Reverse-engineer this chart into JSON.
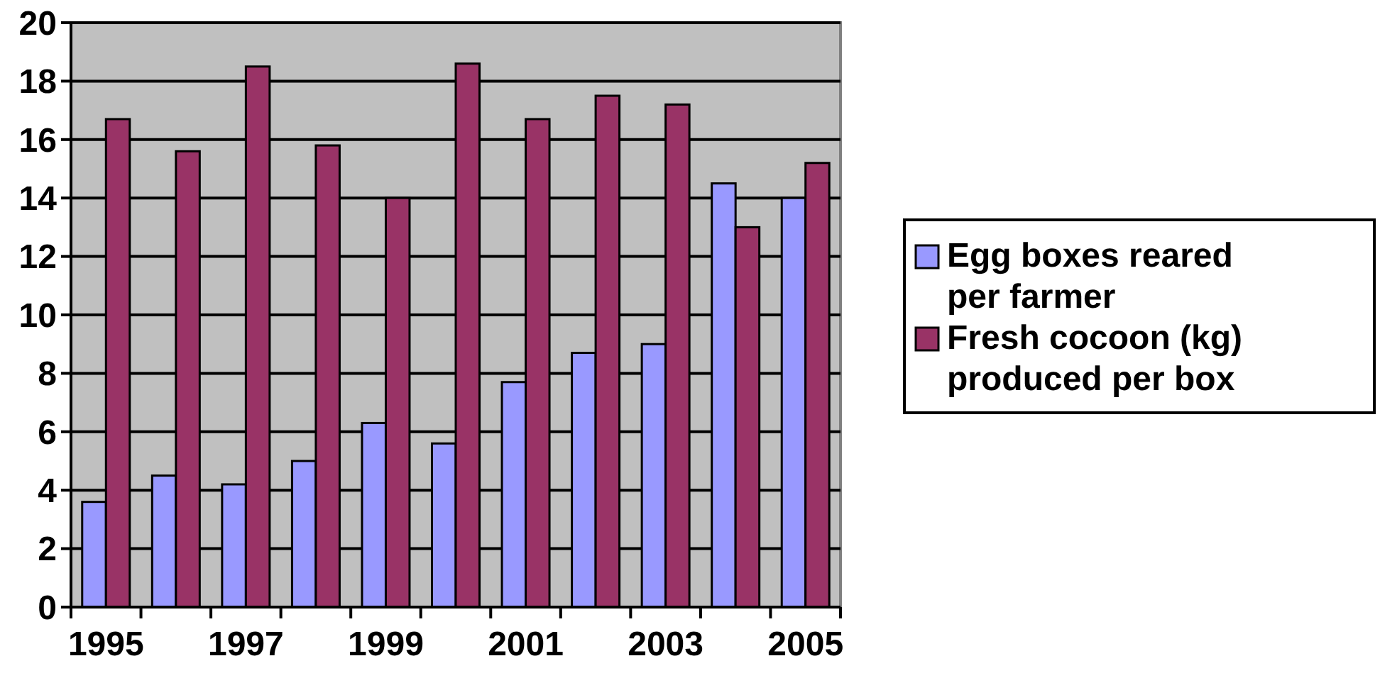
{
  "chart_data": {
    "type": "bar",
    "categories": [
      "1995",
      null,
      "1997",
      null,
      "1999",
      null,
      "2001",
      null,
      "2003",
      null,
      "2005"
    ],
    "series": [
      {
        "name": "Egg boxes reared per farmer",
        "color": "#9999ff",
        "values": [
          3.6,
          4.5,
          4.2,
          5.0,
          6.3,
          5.6,
          7.7,
          8.7,
          9.0,
          14.5,
          14.0
        ]
      },
      {
        "name": "Fresh cocoon (kg) produced per box",
        "color": "#993366",
        "values": [
          16.7,
          15.6,
          18.5,
          15.8,
          14.0,
          18.6,
          16.7,
          17.5,
          17.2,
          13.0,
          15.2
        ]
      }
    ],
    "ylim": [
      0,
      20
    ],
    "yticks": [
      0,
      2,
      4,
      6,
      8,
      10,
      12,
      14,
      16,
      18,
      20
    ],
    "grid": "y",
    "legend": "right"
  }
}
